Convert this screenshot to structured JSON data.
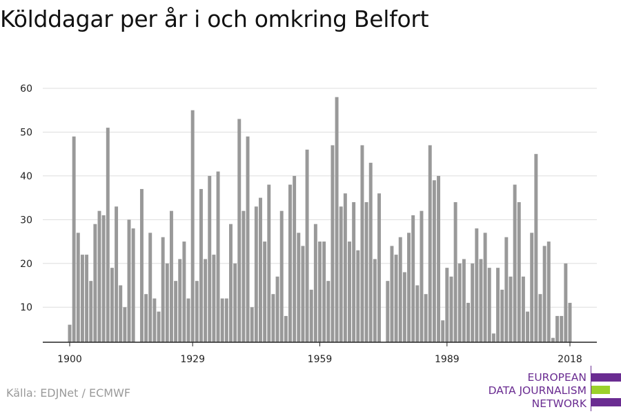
{
  "title": "Kölddagar per år i och omkring Belfort",
  "source": "Källa: EDJNet / ECMWF",
  "logo": {
    "lines": [
      "EUROPEAN",
      "DATA JOURNALISM",
      "NETWORK"
    ],
    "colors": {
      "purple": "#6a2c91",
      "green": "#9bd12a"
    }
  },
  "colors": {
    "bar": "#999999",
    "grid": "#dddddd",
    "axis": "#222222",
    "text": "#222222"
  },
  "chart_data": {
    "type": "bar",
    "title": "Kölddagar per år i och omkring Belfort",
    "xlabel": "",
    "ylabel": "",
    "x_ticks": [
      1900,
      1929,
      1959,
      1989,
      2018
    ],
    "y_ticks": [
      10,
      20,
      30,
      40,
      50,
      60
    ],
    "ylim": [
      2,
      62
    ],
    "grid": true,
    "x": [
      1900,
      1901,
      1902,
      1903,
      1904,
      1905,
      1906,
      1907,
      1908,
      1909,
      1910,
      1911,
      1912,
      1913,
      1914,
      1915,
      1916,
      1917,
      1918,
      1919,
      1920,
      1921,
      1922,
      1923,
      1924,
      1925,
      1926,
      1927,
      1928,
      1929,
      1930,
      1931,
      1932,
      1933,
      1934,
      1935,
      1936,
      1937,
      1938,
      1939,
      1940,
      1941,
      1942,
      1943,
      1944,
      1945,
      1946,
      1947,
      1948,
      1949,
      1950,
      1951,
      1952,
      1953,
      1954,
      1955,
      1956,
      1957,
      1958,
      1959,
      1960,
      1961,
      1962,
      1963,
      1964,
      1965,
      1966,
      1967,
      1968,
      1969,
      1970,
      1971,
      1972,
      1973,
      1974,
      1975,
      1976,
      1977,
      1978,
      1979,
      1980,
      1981,
      1982,
      1983,
      1984,
      1985,
      1986,
      1987,
      1988,
      1989,
      1990,
      1991,
      1992,
      1993,
      1994,
      1995,
      1996,
      1997,
      1998,
      1999,
      2000,
      2001,
      2002,
      2003,
      2004,
      2005,
      2006,
      2007,
      2008,
      2009,
      2010,
      2011,
      2012,
      2013,
      2014,
      2015,
      2016,
      2017,
      2018
    ],
    "values": [
      6,
      49,
      27,
      22,
      22,
      16,
      29,
      32,
      31,
      51,
      19,
      33,
      15,
      10,
      30,
      28,
      2,
      37,
      13,
      27,
      12,
      9,
      26,
      20,
      32,
      16,
      21,
      25,
      12,
      55,
      16,
      37,
      21,
      40,
      22,
      41,
      12,
      12,
      29,
      20,
      53,
      32,
      49,
      10,
      33,
      35,
      25,
      38,
      13,
      17,
      32,
      8,
      38,
      40,
      27,
      24,
      46,
      14,
      29,
      25,
      25,
      16,
      47,
      58,
      33,
      36,
      25,
      34,
      23,
      47,
      34,
      43,
      21,
      36,
      2,
      16,
      24,
      22,
      26,
      18,
      27,
      31,
      15,
      32,
      13,
      47,
      39,
      40,
      7,
      19,
      17,
      34,
      20,
      21,
      11,
      20,
      28,
      21,
      27,
      19,
      4,
      19,
      14,
      26,
      17,
      38,
      34,
      17,
      9,
      27,
      45,
      13,
      24,
      25,
      3,
      8,
      8,
      20,
      11
    ]
  }
}
